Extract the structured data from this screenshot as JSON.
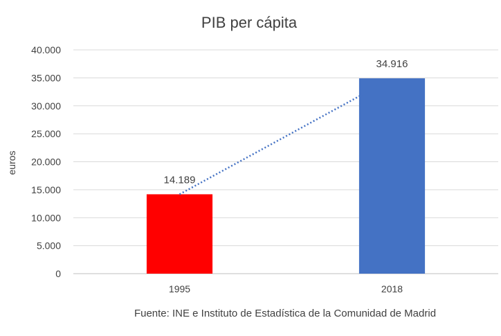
{
  "chart_data": {
    "type": "bar",
    "title": "PIB per cápita",
    "ylabel": "euros",
    "xlabel": "",
    "categories": [
      "1995",
      "2018"
    ],
    "values": [
      14189,
      34916
    ],
    "value_labels": [
      "14.189",
      "34.916"
    ],
    "bar_colors": [
      "#ff0000",
      "#4472c4"
    ],
    "ylim": [
      0,
      40000
    ],
    "y_ticks": [
      0,
      5000,
      10000,
      15000,
      20000,
      25000,
      30000,
      35000,
      40000
    ],
    "y_tick_labels": [
      "0",
      "5.000",
      "10.000",
      "15.000",
      "20.000",
      "25.000",
      "30.000",
      "35.000",
      "40.000"
    ],
    "grid": true,
    "legend": "none",
    "trendline": {
      "style": "dotted",
      "color": "#4472c4"
    },
    "source_note": "Fuente: INE e Instituto de Estadística de la Comunidad de Madrid"
  }
}
